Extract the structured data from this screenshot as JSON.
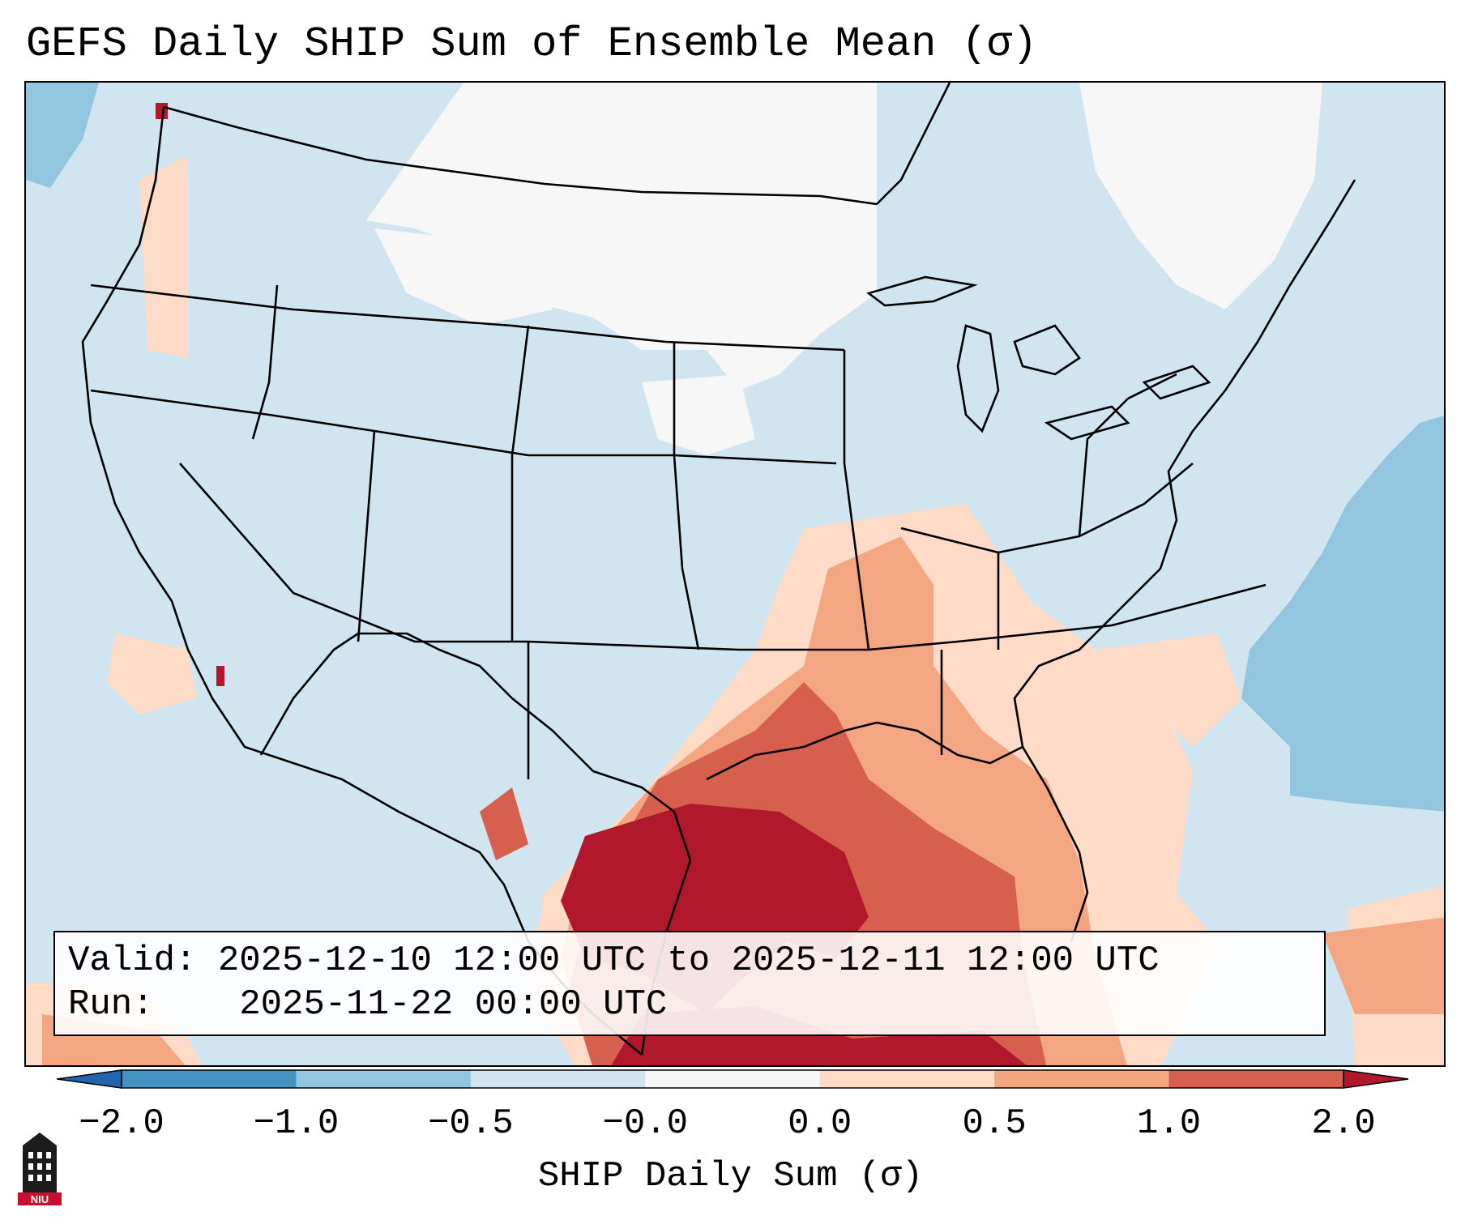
{
  "title": "GEFS Daily SHIP Sum of Ensemble Mean (σ)",
  "info": {
    "valid_label": "Valid:",
    "valid_value": "2025-12-10 12:00 UTC to 2025-12-11 12:00 UTC",
    "run_label": "Run:",
    "run_value": "2025-11-22 00:00 UTC"
  },
  "colorbar": {
    "label": "SHIP Daily Sum (σ)",
    "ticks": [
      "−2.0",
      "−1.0",
      "−0.5",
      "−0.0",
      "0.0",
      "0.5",
      "1.0",
      "2.0"
    ],
    "colors": [
      "#2166ac",
      "#4393c3",
      "#92c5de",
      "#d1e5f0",
      "#f7f7f7",
      "#fddbc7",
      "#f4a582",
      "#d6604d",
      "#b2182b"
    ]
  },
  "map": {
    "region": "Contiguous United States",
    "background_color": "#d1e5f0",
    "high_region": "Texas and Gulf Coast",
    "low_region": "Western Atlantic"
  },
  "logo": {
    "text": "NIU",
    "icon": "niu-tower-logo"
  }
}
